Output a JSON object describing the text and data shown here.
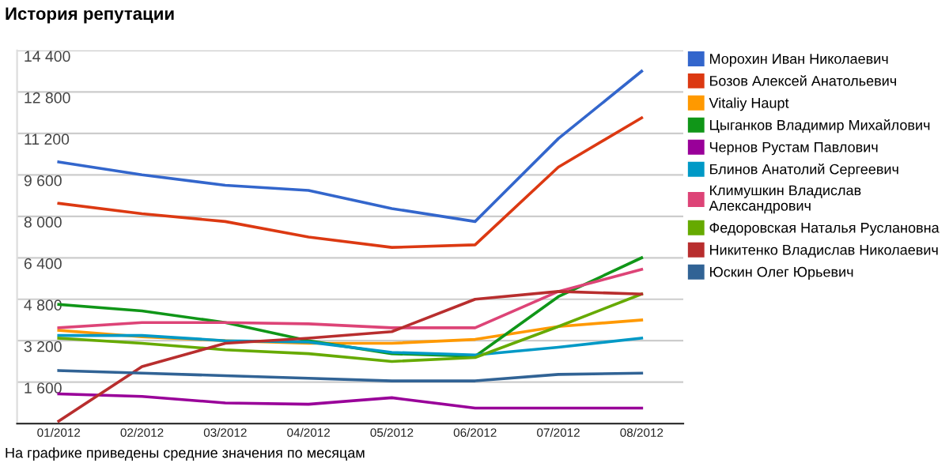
{
  "chart_data": {
    "type": "line",
    "title": "История репутации",
    "categories": [
      "01/2012",
      "02/2012",
      "03/2012",
      "04/2012",
      "05/2012",
      "06/2012",
      "07/2012",
      "08/2012"
    ],
    "series": [
      {
        "name": "Морохин Иван Николаевич",
        "color": "#3366cc",
        "values": [
          10100,
          9600,
          9200,
          9000,
          8300,
          7800,
          11000,
          13600
        ]
      },
      {
        "name": "Бозов Алексей Анатольевич",
        "color": "#dc3912",
        "values": [
          8500,
          8100,
          7800,
          7200,
          6800,
          6900,
          9900,
          11800
        ]
      },
      {
        "name": "Vitaliy Haupt",
        "color": "#ff9900",
        "values": [
          3600,
          3350,
          3200,
          3100,
          3100,
          3250,
          3750,
          4000
        ]
      },
      {
        "name": "Цыганков Владимир Михайлович",
        "color": "#109618",
        "values": [
          4600,
          4350,
          3900,
          3200,
          2700,
          2600,
          4900,
          6400
        ]
      },
      {
        "name": "Чернов Рустам Павлович",
        "color": "#990099",
        "values": [
          1150,
          1050,
          800,
          750,
          1000,
          600,
          600,
          600
        ]
      },
      {
        "name": "Блинов Анатолий Сергеевич",
        "color": "#0099c6",
        "values": [
          3400,
          3400,
          3200,
          3150,
          2750,
          2650,
          2950,
          3300
        ]
      },
      {
        "name": "Климушкин Владислав Александрович",
        "color": "#dd4477",
        "values": [
          3700,
          3900,
          3900,
          3850,
          3700,
          3700,
          5100,
          5950
        ]
      },
      {
        "name": "Федоровская Наталья Руслановна",
        "color": "#66aa00",
        "values": [
          3300,
          3100,
          2850,
          2700,
          2400,
          2550,
          3750,
          5000
        ]
      },
      {
        "name": "Никитенко Владислав Николаевич",
        "color": "#b82e2e",
        "values": [
          100,
          2200,
          3100,
          3300,
          3550,
          4800,
          5100,
          5000
        ]
      },
      {
        "name": "Юскин Олег Юрьевич",
        "color": "#316395",
        "values": [
          2050,
          1950,
          1850,
          1750,
          1650,
          1650,
          1900,
          1950
        ]
      }
    ],
    "ylim": [
      0,
      14400
    ],
    "yticks": [
      {
        "value": 1600,
        "label": "1 600"
      },
      {
        "value": 3200,
        "label": "3 200"
      },
      {
        "value": 4800,
        "label": "4 800"
      },
      {
        "value": 6400,
        "label": "6 400"
      },
      {
        "value": 8000,
        "label": "8 000"
      },
      {
        "value": 9600,
        "label": "9 600"
      },
      {
        "value": 11200,
        "label": "11 200"
      },
      {
        "value": 12800,
        "label": "12 800"
      },
      {
        "value": 14400,
        "label": "14 400"
      }
    ],
    "grid": "y",
    "legend": "right",
    "marker": "none",
    "line_style": "solid",
    "annotations": [
      "На графике приведены средние значения по месяцам"
    ]
  }
}
